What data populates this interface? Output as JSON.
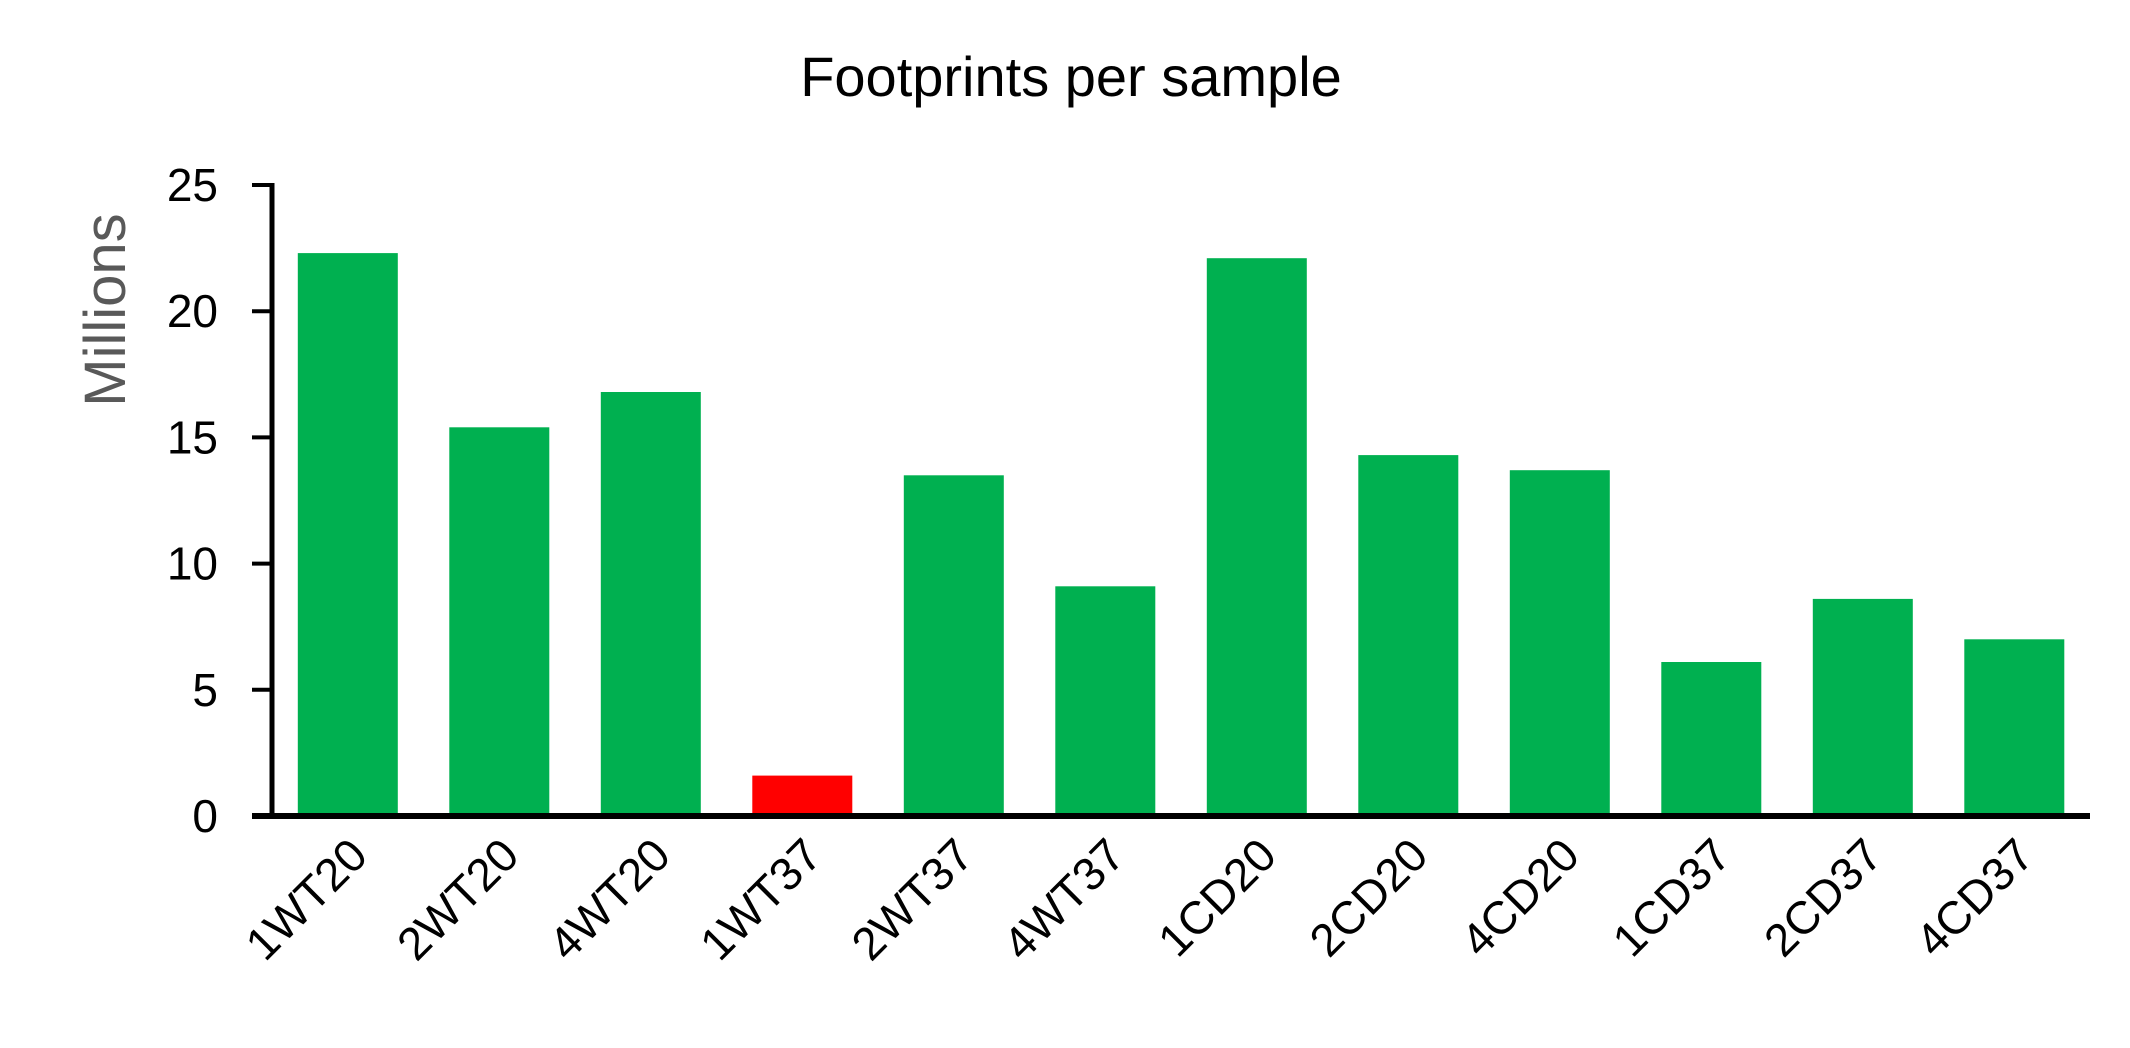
{
  "chart_data": {
    "type": "bar",
    "title": "Footprints per sample",
    "xlabel": "",
    "ylabel": "Millions",
    "ylim": [
      0,
      25
    ],
    "yticks": [
      0,
      5,
      10,
      15,
      20,
      25
    ],
    "grid": false,
    "legend": "none",
    "categories": [
      "1WT20",
      "2WT20",
      "4WT20",
      "1WT37",
      "2WT37",
      "4WT37",
      "1CD20",
      "2CD20",
      "4CD20",
      "1CD37",
      "2CD37",
      "4CD37"
    ],
    "values": [
      22.3,
      15.4,
      16.8,
      1.6,
      13.5,
      9.1,
      22.1,
      14.3,
      13.7,
      6.1,
      8.6,
      7.0
    ],
    "colors": [
      "#00B050",
      "#00B050",
      "#00B050",
      "#FF0000",
      "#00B050",
      "#00B050",
      "#00B050",
      "#00B050",
      "#00B050",
      "#00B050",
      "#00B050",
      "#00B050"
    ]
  }
}
